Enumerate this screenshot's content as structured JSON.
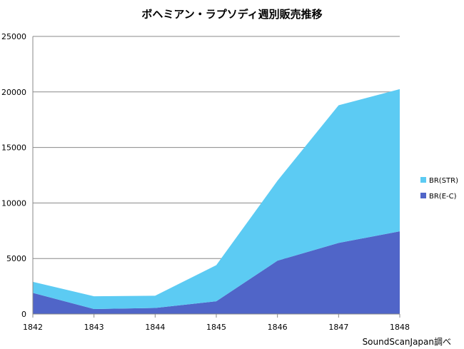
{
  "chart_data": {
    "type": "area",
    "stacked": true,
    "title": "ボヘミアン・ラプソディ週別販売推移",
    "x": [
      "1842",
      "1843",
      "1844",
      "1845",
      "1846",
      "1847",
      "1848"
    ],
    "ylim": [
      0,
      25000
    ],
    "y_ticks": [
      "0",
      "5000",
      "10000",
      "15000",
      "20000",
      "25000"
    ],
    "grid": true,
    "legend_position": "right",
    "series": [
      {
        "name": "BR(E-C)",
        "color": "#5065c8",
        "values": [
          1900,
          450,
          550,
          1150,
          4800,
          6400,
          7450
        ]
      },
      {
        "name": "BR(STR)",
        "color": "#5ccbf3",
        "values": [
          1000,
          1150,
          1100,
          3250,
          7200,
          12400,
          12800
        ]
      }
    ],
    "legend_order": [
      "BR(STR)",
      "BR(E-C)"
    ],
    "source_note": "SoundScanJapan調べ"
  }
}
